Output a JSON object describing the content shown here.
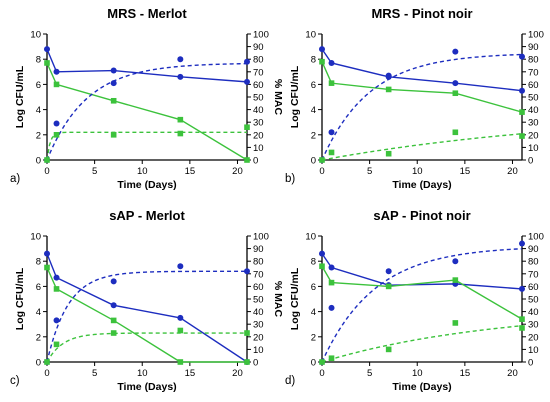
{
  "colors": {
    "blue": "#1d2dbf",
    "green": "#3cc23c"
  },
  "chart_data": [
    {
      "type": "line",
      "panel_label": "a)",
      "title": "MRS -  Merlot",
      "xlabel": "Time (Days)",
      "ylabel": "Log CFU/mL",
      "y2label": "% MAC",
      "xlim": [
        0,
        21
      ],
      "ylim": [
        0,
        10
      ],
      "y2lim": [
        0,
        100
      ],
      "xticks": [
        "0",
        "5",
        "10",
        "15",
        "20"
      ],
      "yticks": [
        "0",
        "2",
        "4",
        "6",
        "8",
        "10"
      ],
      "y2ticks": [
        "0",
        "10",
        "20",
        "30",
        "40",
        "50",
        "60",
        "70",
        "80",
        "90",
        "100"
      ],
      "series": [
        {
          "color": "blue",
          "marker": "circle",
          "style": "solid",
          "axis": "left",
          "x": [
            0,
            1,
            7,
            14,
            21
          ],
          "y": [
            8.8,
            7.0,
            7.1,
            6.6,
            6.2
          ]
        },
        {
          "color": "green",
          "marker": "square",
          "style": "solid",
          "axis": "left",
          "x": [
            0,
            1,
            7,
            14,
            21
          ],
          "y": [
            7.7,
            6.0,
            4.7,
            3.2,
            0
          ]
        },
        {
          "color": "blue",
          "marker": "circle",
          "style": "dashed",
          "axis": "right",
          "x": [
            0,
            1,
            7,
            14,
            21
          ],
          "y": [
            0,
            29,
            61,
            80,
            78
          ],
          "fit": {
            "plateau": 77,
            "k": 0.24
          }
        },
        {
          "color": "green",
          "marker": "square",
          "style": "dashed",
          "axis": "right",
          "x": [
            0,
            1,
            7,
            14,
            21
          ],
          "y": [
            0,
            20,
            20,
            21,
            26
          ],
          "fit": {
            "plateau": 22,
            "k": 3.0
          }
        }
      ]
    },
    {
      "type": "line",
      "panel_label": "b)",
      "title": "MRS - Pinot noir",
      "xlabel": "Time (Days)",
      "ylabel": "Log CFU/mL",
      "y2label": "% MAC",
      "xlim": [
        0,
        21
      ],
      "ylim": [
        0,
        10
      ],
      "y2lim": [
        0,
        100
      ],
      "xticks": [
        "0",
        "5",
        "10",
        "15",
        "20"
      ],
      "yticks": [
        "0",
        "2",
        "4",
        "6",
        "8",
        "10"
      ],
      "y2ticks": [
        "0",
        "10",
        "20",
        "30",
        "40",
        "50",
        "60",
        "70",
        "80",
        "90",
        "100"
      ],
      "series": [
        {
          "color": "blue",
          "marker": "circle",
          "style": "solid",
          "axis": "left",
          "x": [
            0,
            1,
            7,
            14,
            21
          ],
          "y": [
            8.8,
            7.7,
            6.6,
            6.1,
            5.5
          ]
        },
        {
          "color": "green",
          "marker": "square",
          "style": "solid",
          "axis": "left",
          "x": [
            0,
            1,
            7,
            14,
            21
          ],
          "y": [
            7.8,
            6.1,
            5.6,
            5.3,
            3.8
          ]
        },
        {
          "color": "blue",
          "marker": "circle",
          "style": "dashed",
          "axis": "right",
          "x": [
            0,
            1,
            7,
            14,
            21
          ],
          "y": [
            0,
            22,
            67,
            86,
            82
          ],
          "fit": {
            "plateau": 85,
            "k": 0.2
          }
        },
        {
          "color": "green",
          "marker": "square",
          "style": "dashed",
          "axis": "right",
          "x": [
            0,
            1,
            7,
            14,
            21
          ],
          "y": [
            0,
            6,
            5,
            22,
            19
          ],
          "fit": {
            "plateau": 40,
            "k": 0.035
          }
        }
      ]
    },
    {
      "type": "line",
      "panel_label": "c)",
      "title": "sAP - Merlot",
      "xlabel": "Time (Days)",
      "ylabel": "Log CFU/mL",
      "y2label": "% MAC",
      "xlim": [
        0,
        21
      ],
      "ylim": [
        0,
        10
      ],
      "y2lim": [
        0,
        100
      ],
      "xticks": [
        "0",
        "5",
        "10",
        "15",
        "20"
      ],
      "yticks": [
        "0",
        "2",
        "4",
        "6",
        "8",
        "10"
      ],
      "y2ticks": [
        "0",
        "10",
        "20",
        "30",
        "40",
        "50",
        "60",
        "70",
        "80",
        "90",
        "100"
      ],
      "series": [
        {
          "color": "blue",
          "marker": "circle",
          "style": "solid",
          "axis": "left",
          "x": [
            0,
            1,
            7,
            14,
            21
          ],
          "y": [
            8.6,
            6.7,
            4.5,
            3.5,
            0
          ]
        },
        {
          "color": "green",
          "marker": "square",
          "style": "solid",
          "axis": "left",
          "x": [
            0,
            1,
            7,
            14,
            21
          ],
          "y": [
            7.5,
            5.8,
            3.3,
            0,
            0
          ]
        },
        {
          "color": "blue",
          "marker": "circle",
          "style": "dashed",
          "axis": "right",
          "x": [
            0,
            1,
            7,
            14,
            21
          ],
          "y": [
            0,
            33,
            64,
            76,
            72
          ],
          "fit": {
            "plateau": 72,
            "k": 0.45
          }
        },
        {
          "color": "green",
          "marker": "square",
          "style": "dashed",
          "axis": "right",
          "x": [
            0,
            1,
            7,
            14,
            21
          ],
          "y": [
            0,
            14,
            23,
            25,
            23
          ],
          "fit": {
            "plateau": 23,
            "k": 0.6
          }
        }
      ]
    },
    {
      "type": "line",
      "panel_label": "d)",
      "title": "sAP - Pinot noir",
      "xlabel": "Time (Days)",
      "ylabel": "Log CFU/mL",
      "y2label": "% MAC",
      "xlim": [
        0,
        21
      ],
      "ylim": [
        0,
        10
      ],
      "y2lim": [
        0,
        100
      ],
      "xticks": [
        "0",
        "5",
        "10",
        "15",
        "20"
      ],
      "yticks": [
        "0",
        "2",
        "4",
        "6",
        "8",
        "10"
      ],
      "y2ticks": [
        "0",
        "10",
        "20",
        "30",
        "40",
        "50",
        "60",
        "70",
        "80",
        "90",
        "100"
      ],
      "series": [
        {
          "color": "blue",
          "marker": "circle",
          "style": "solid",
          "axis": "left",
          "x": [
            0,
            1,
            7,
            14,
            21
          ],
          "y": [
            8.6,
            7.5,
            6.1,
            6.2,
            5.8
          ]
        },
        {
          "color": "green",
          "marker": "square",
          "style": "solid",
          "axis": "left",
          "x": [
            0,
            1,
            7,
            14,
            21
          ],
          "y": [
            7.6,
            6.3,
            6.0,
            6.5,
            3.4
          ]
        },
        {
          "color": "blue",
          "marker": "circle",
          "style": "dashed",
          "axis": "right",
          "x": [
            0,
            1,
            7,
            14,
            21
          ],
          "y": [
            0,
            43,
            72,
            80,
            94
          ],
          "fit": {
            "plateau": 92,
            "k": 0.18
          }
        },
        {
          "color": "green",
          "marker": "square",
          "style": "dashed",
          "axis": "right",
          "x": [
            0,
            1,
            7,
            14,
            21
          ],
          "y": [
            0,
            3,
            10,
            31,
            27
          ],
          "fit": {
            "plateau": 42,
            "k": 0.055
          }
        }
      ]
    }
  ]
}
